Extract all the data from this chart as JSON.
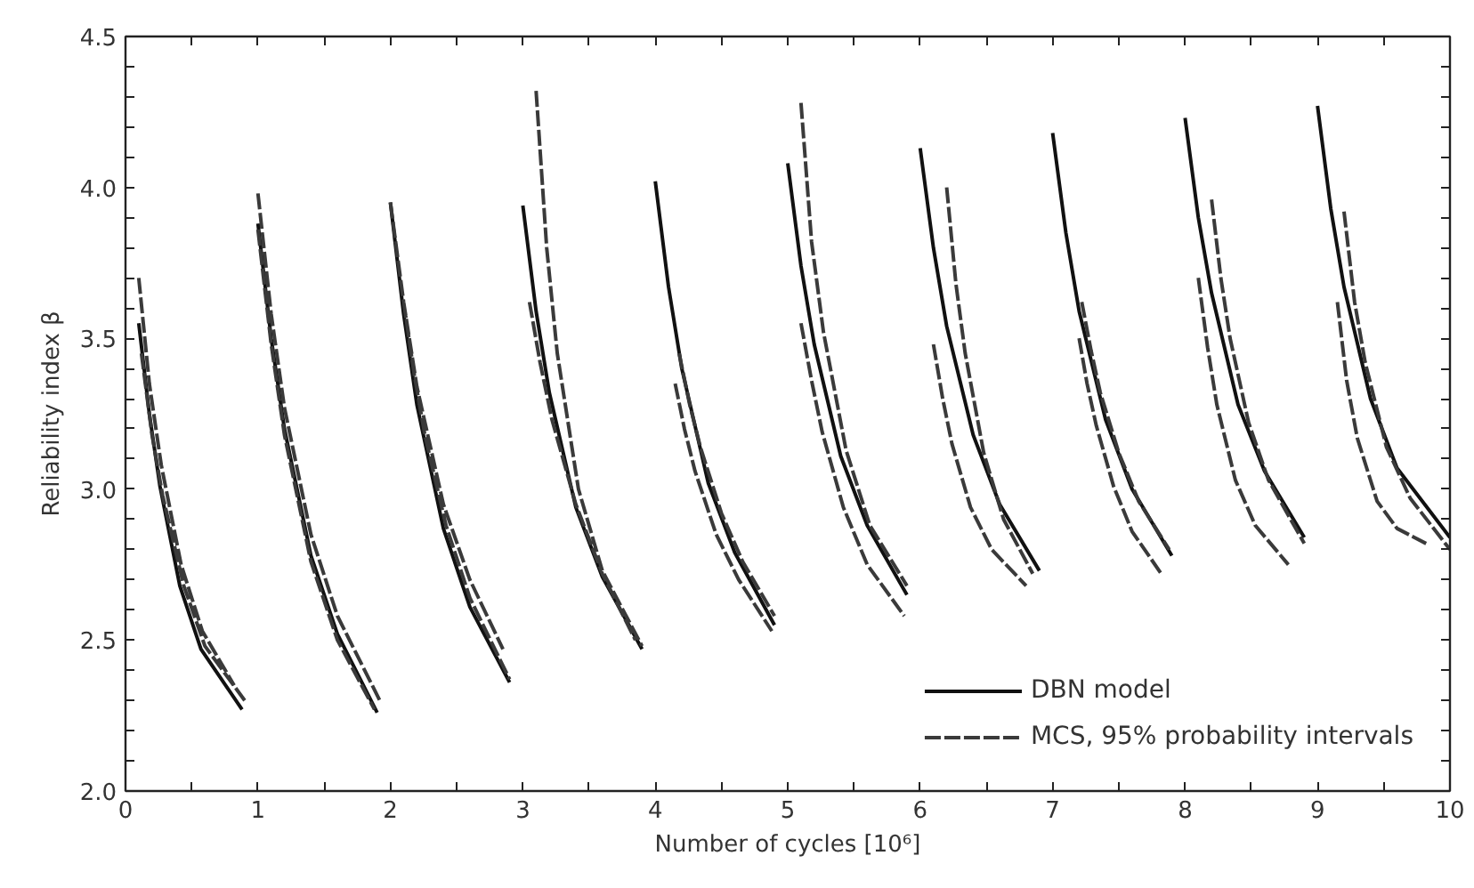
{
  "chart_data": {
    "type": "line",
    "xlabel": "Number of cycles [10⁶]",
    "ylabel": "Reliability index β",
    "xlim": [
      0,
      10
    ],
    "ylim": [
      2.0,
      4.5
    ],
    "xticks": [
      0,
      {
        "value": 0.5,
        "label": null
      },
      1,
      {
        "value": 1.5,
        "label": null
      },
      2,
      {
        "value": 2.5,
        "label": null
      },
      3,
      {
        "value": 3.5,
        "label": null
      },
      4,
      {
        "value": 4.5,
        "label": null
      },
      5,
      {
        "value": 5.5,
        "label": null
      },
      6,
      {
        "value": 6.5,
        "label": null
      },
      7,
      {
        "value": 7.5,
        "label": null
      },
      8,
      {
        "value": 8.5,
        "label": null
      },
      9,
      {
        "value": 9.5,
        "label": null
      },
      10
    ],
    "yticks": [
      {
        "value": 2.0,
        "label": "2.0"
      },
      {
        "value": 2.1,
        "label": null
      },
      {
        "value": 2.2,
        "label": null
      },
      {
        "value": 2.3,
        "label": null
      },
      {
        "value": 2.4,
        "label": null
      },
      {
        "value": 2.5,
        "label": "2.5"
      },
      {
        "value": 2.6,
        "label": null
      },
      {
        "value": 2.7,
        "label": null
      },
      {
        "value": 2.8,
        "label": null
      },
      {
        "value": 2.9,
        "label": null
      },
      {
        "value": 3.0,
        "label": "3.0"
      },
      {
        "value": 3.1,
        "label": null
      },
      {
        "value": 3.2,
        "label": null
      },
      {
        "value": 3.3,
        "label": null
      },
      {
        "value": 3.4,
        "label": null
      },
      {
        "value": 3.5,
        "label": "3.5"
      },
      {
        "value": 3.6,
        "label": null
      },
      {
        "value": 3.7,
        "label": null
      },
      {
        "value": 3.8,
        "label": null
      },
      {
        "value": 3.9,
        "label": null
      },
      {
        "value": 4.0,
        "label": "4.0"
      },
      {
        "value": 4.1,
        "label": null
      },
      {
        "value": 4.2,
        "label": null
      },
      {
        "value": 4.3,
        "label": null
      },
      {
        "value": 4.4,
        "label": null
      },
      {
        "value": 4.5,
        "label": "4.5"
      }
    ],
    "grid": false,
    "legend": "bottom right",
    "series": [
      {
        "name": "DBN model",
        "color": "#111111",
        "line_style": "solid",
        "x": [
          0.1,
          0.18,
          0.26,
          0.41,
          0.57,
          0.88,
          null,
          1.0,
          1.1,
          1.2,
          1.4,
          1.6,
          1.9,
          null,
          2.0,
          2.1,
          2.2,
          2.4,
          2.6,
          2.9,
          null,
          3.0,
          3.1,
          3.2,
          3.4,
          3.6,
          3.9,
          null,
          4.0,
          4.1,
          4.2,
          4.4,
          4.6,
          4.9,
          null,
          5.0,
          5.1,
          5.2,
          5.4,
          5.6,
          5.9,
          null,
          6.0,
          6.1,
          6.2,
          6.4,
          6.6,
          6.9,
          null,
          7.0,
          7.1,
          7.2,
          7.4,
          7.6,
          7.9,
          null,
          8.0,
          8.1,
          8.2,
          8.4,
          8.6,
          8.9,
          null,
          9.0,
          9.1,
          9.2,
          9.4,
          9.6,
          10.0
        ],
        "values": [
          3.55,
          3.25,
          3.01,
          2.68,
          2.47,
          2.27,
          null,
          3.88,
          3.5,
          3.2,
          2.78,
          2.52,
          2.26,
          null,
          3.95,
          3.58,
          3.28,
          2.87,
          2.61,
          2.36,
          null,
          3.94,
          3.59,
          3.32,
          2.94,
          2.71,
          2.47,
          null,
          4.02,
          3.67,
          3.4,
          3.02,
          2.79,
          2.55,
          null,
          4.08,
          3.74,
          3.48,
          3.11,
          2.88,
          2.65,
          null,
          4.13,
          3.8,
          3.54,
          3.18,
          2.95,
          2.73,
          null,
          4.18,
          3.85,
          3.59,
          3.23,
          3.0,
          2.78,
          null,
          4.23,
          3.9,
          3.65,
          3.28,
          3.06,
          2.84,
          null,
          4.27,
          3.93,
          3.67,
          3.3,
          3.07,
          2.84
        ]
      },
      {
        "name": "MCS, 95% probability intervals",
        "color": "#3a3a3a",
        "line_style": "dashed",
        "x": [
          0.1,
          0.18,
          0.27,
          0.42,
          0.58,
          0.82,
          null,
          0.12,
          0.2,
          0.28,
          0.44,
          0.6,
          0.9,
          null,
          1.0,
          1.1,
          1.2,
          1.4,
          1.6,
          1.92,
          null,
          1.0,
          1.1,
          1.2,
          1.4,
          1.6,
          1.88,
          null,
          2.0,
          2.1,
          2.2,
          2.4,
          2.6,
          2.85,
          null,
          2.1,
          2.18,
          2.26,
          2.42,
          2.6,
          2.9,
          null,
          3.1,
          3.18,
          3.26,
          3.42,
          3.6,
          3.9,
          null,
          3.05,
          3.13,
          3.22,
          3.4,
          3.6,
          3.85,
          null,
          4.18,
          4.26,
          4.34,
          4.5,
          4.66,
          4.9,
          null,
          4.15,
          4.22,
          4.3,
          4.46,
          4.63,
          4.88,
          null,
          5.1,
          5.18,
          5.27,
          5.44,
          5.62,
          5.9,
          null,
          5.1,
          5.18,
          5.26,
          5.42,
          5.6,
          5.88,
          null,
          6.2,
          6.27,
          6.34,
          6.48,
          6.63,
          6.85,
          null,
          6.1,
          6.17,
          6.24,
          6.38,
          6.54,
          6.8,
          null,
          7.22,
          7.29,
          7.36,
          7.5,
          7.65,
          7.88,
          null,
          7.2,
          7.26,
          7.33,
          7.46,
          7.6,
          7.82,
          null,
          8.2,
          8.27,
          8.34,
          8.48,
          8.63,
          8.9,
          null,
          8.1,
          8.17,
          8.24,
          8.38,
          8.53,
          8.78,
          null,
          9.2,
          9.28,
          9.36,
          9.52,
          9.7,
          10.0,
          null,
          9.15,
          9.22,
          9.3,
          9.45,
          9.6,
          9.82
        ],
        "values": [
          3.7,
          3.35,
          3.08,
          2.75,
          2.53,
          2.35,
          null,
          3.45,
          3.18,
          2.98,
          2.68,
          2.48,
          2.3,
          null,
          3.98,
          3.58,
          3.27,
          2.85,
          2.58,
          2.3,
          null,
          3.86,
          3.48,
          3.18,
          2.76,
          2.5,
          2.27,
          null,
          3.95,
          3.62,
          3.34,
          2.95,
          2.7,
          2.47,
          null,
          3.62,
          3.38,
          3.18,
          2.88,
          2.64,
          2.37,
          null,
          4.32,
          3.8,
          3.45,
          3.0,
          2.73,
          2.48,
          null,
          3.62,
          3.42,
          3.23,
          2.95,
          2.72,
          2.5,
          null,
          3.45,
          3.28,
          3.14,
          2.92,
          2.76,
          2.58,
          null,
          3.35,
          3.2,
          3.06,
          2.85,
          2.7,
          2.53,
          null,
          4.28,
          3.82,
          3.52,
          3.13,
          2.88,
          2.68,
          null,
          3.55,
          3.36,
          3.19,
          2.94,
          2.75,
          2.58,
          null,
          4.0,
          3.68,
          3.45,
          3.12,
          2.9,
          2.72,
          null,
          3.48,
          3.3,
          3.15,
          2.94,
          2.8,
          2.68,
          null,
          3.62,
          3.46,
          3.32,
          3.12,
          2.96,
          2.8,
          null,
          3.5,
          3.35,
          3.21,
          3.01,
          2.86,
          2.72,
          null,
          3.96,
          3.7,
          3.5,
          3.22,
          3.03,
          2.82,
          null,
          3.7,
          3.47,
          3.28,
          3.03,
          2.88,
          2.75,
          null,
          3.92,
          3.62,
          3.42,
          3.14,
          2.97,
          2.8,
          null,
          3.62,
          3.36,
          3.17,
          2.96,
          2.87,
          2.82
        ]
      }
    ]
  }
}
